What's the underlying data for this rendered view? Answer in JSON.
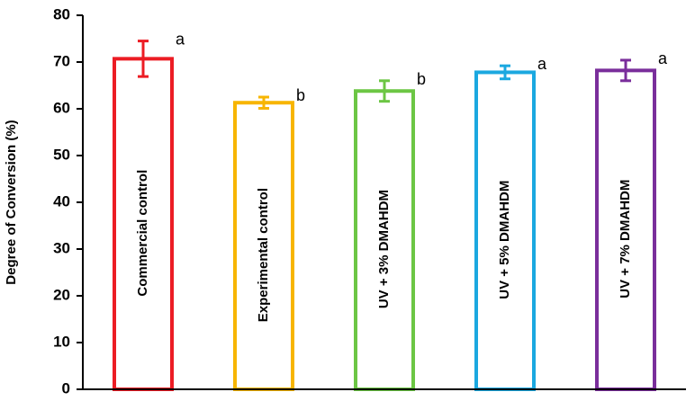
{
  "chart_data": {
    "type": "bar",
    "title": "",
    "xlabel": "",
    "ylabel": "Degree of Conversion (%)",
    "ylim": [
      0,
      80
    ],
    "yticks": [
      0,
      10,
      20,
      30,
      40,
      50,
      60,
      70,
      80
    ],
    "grid": false,
    "legend": "none",
    "bar_labels_inside": true,
    "categories": [
      "Commercial control",
      "Experimental control",
      "UV + 3% DMAHDM",
      "UV + 5% DMAHDM",
      "UV + 7% DMAHDM"
    ],
    "values": [
      70.7,
      61.3,
      63.8,
      67.8,
      68.2
    ],
    "errors": [
      3.8,
      1.2,
      2.2,
      1.4,
      2.2
    ],
    "significance": [
      "a",
      "b",
      "b",
      "a",
      "a"
    ],
    "colors": [
      "#ec1c24",
      "#f7b500",
      "#6cc644",
      "#1ba8e0",
      "#7a2e9b"
    ]
  }
}
